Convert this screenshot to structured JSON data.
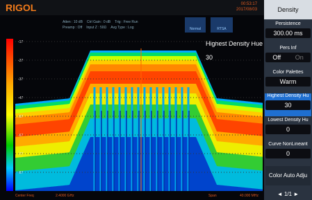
{
  "header": {
    "logo": "RIGOL",
    "status": [
      "Atten : 10 dB",
      "Ctrl Gain : 0 dB",
      "Trig : Free Run",
      "Preamp : Off",
      "Input Z : 50Ω",
      "Avg Type : Log"
    ],
    "time": "00:53:17",
    "date": "2017/08/03",
    "modes": [
      "Normal",
      "RTSA"
    ]
  },
  "display": {
    "scale_labels": [
      "-17",
      "-27",
      "-37",
      "-47",
      "-57",
      "-67",
      "-77",
      "-87"
    ],
    "annotation": "Highest Density Hue",
    "annotation_value": "30"
  },
  "footer": {
    "center_label": "Center Freq",
    "center_value": "2.4000 GHz",
    "span_label": "Span",
    "span_value": "40.000 MHz"
  },
  "menu": {
    "title": "Density",
    "items": [
      {
        "label": "Persistence",
        "value": "300.00 ms"
      },
      {
        "label": "Pers Inf",
        "value": "Off",
        "option": "On"
      },
      {
        "label": "Color Palettes",
        "value": "Warm"
      },
      {
        "label": "Highest Density Hu",
        "value": "30"
      },
      {
        "label": "Lowest Density Hu",
        "value": "0"
      },
      {
        "label": "Curve NonLinearit",
        "value": "0"
      },
      {
        "label": "Color Auto Adju"
      }
    ],
    "page": "1/1"
  }
}
